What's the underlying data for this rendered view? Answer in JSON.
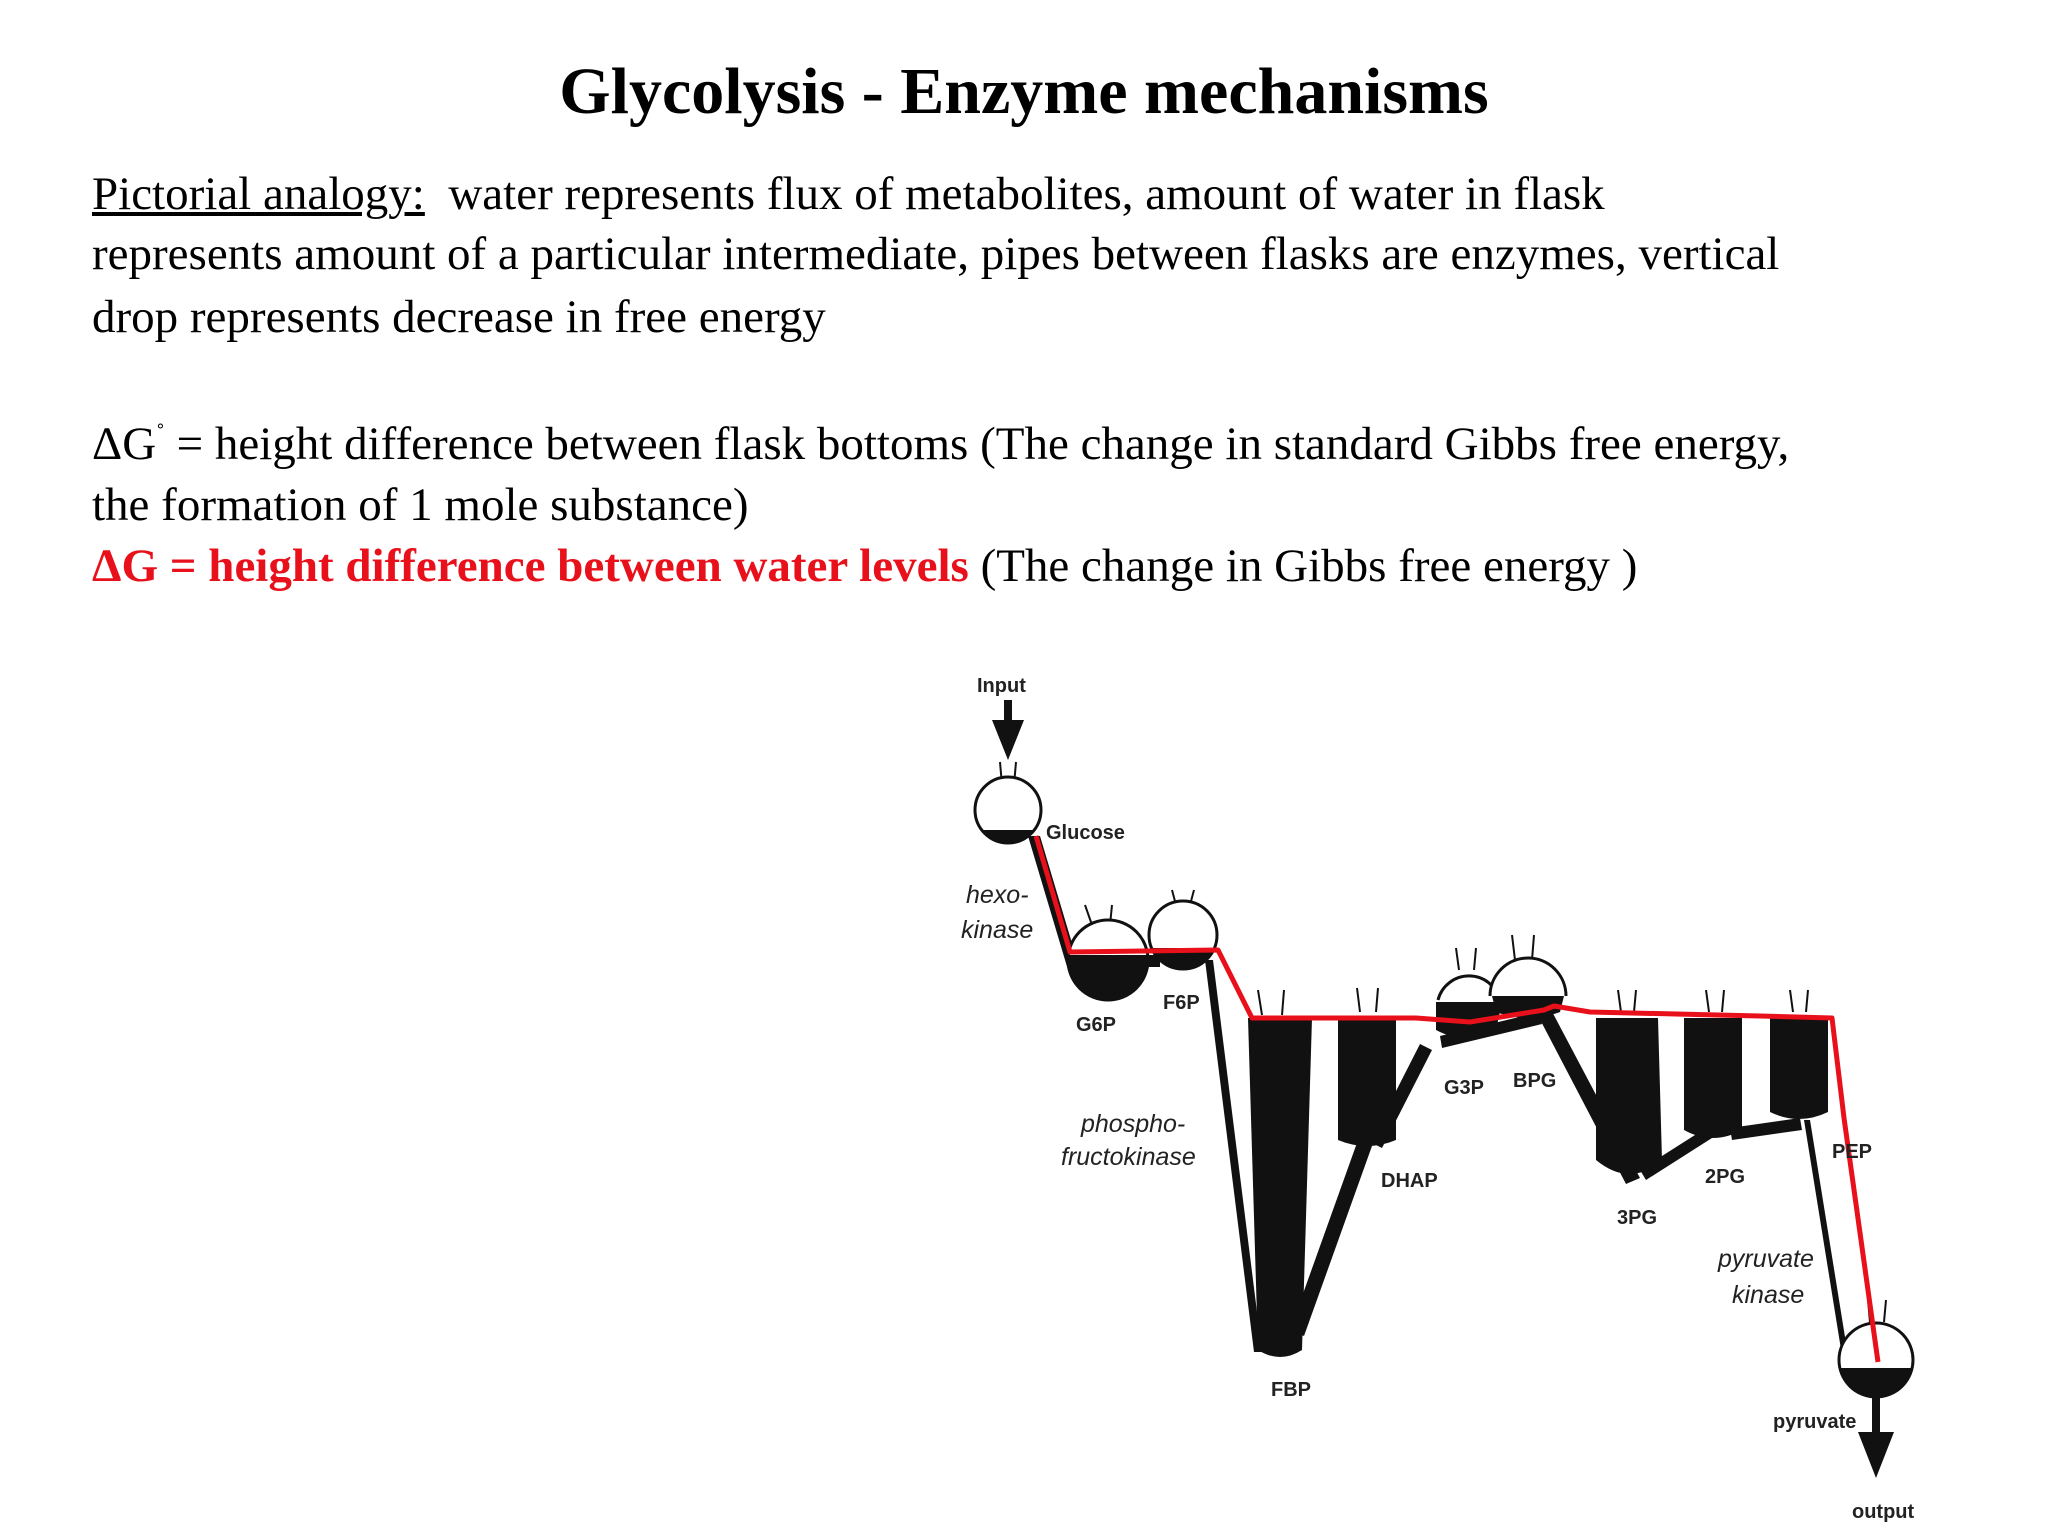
{
  "slide": {
    "title": "Glycolysis - Enzyme mechanisms",
    "analogy_heading": "Pictorial analogy:",
    "analogy_line1": "water represents flux of metabolites, amount of water in flask",
    "analogy_line2": "represents amount of a particular intermediate, pipes between flasks are enzymes, vertical",
    "analogy_line3": "drop represents decrease in free energy",
    "dg0_symbol": "ΔG",
    "dg0_degree": "˚",
    "dg0_line1": "= height difference between flask bottoms (The change in standard Gibbs free energy,",
    "dg0_line2": "the formation of 1 mole substance)",
    "dg_bold": "ΔG = height difference between water levels",
    "dg_rest": "(The change in Gibbs free energy )"
  },
  "diagram": {
    "labels": {
      "input": "Input",
      "glucose": "Glucose",
      "hexokinase_1": "hexo-",
      "hexokinase_2": "kinase",
      "g6p": "G6P",
      "f6p": "F6P",
      "pfk_1": "phospho-",
      "pfk_2": "fructokinase",
      "fbp": "FBP",
      "dhap": "DHAP",
      "g3p": "G3P",
      "bpg": "BPG",
      "pg3": "3PG",
      "pg2": "2PG",
      "pep": "PEP",
      "pk_1": "pyruvate",
      "pk_2": "kinase",
      "pyruvate": "pyruvate",
      "output": "output"
    },
    "colors": {
      "water_level_line": "#e8101a",
      "flask": "#111111"
    }
  }
}
